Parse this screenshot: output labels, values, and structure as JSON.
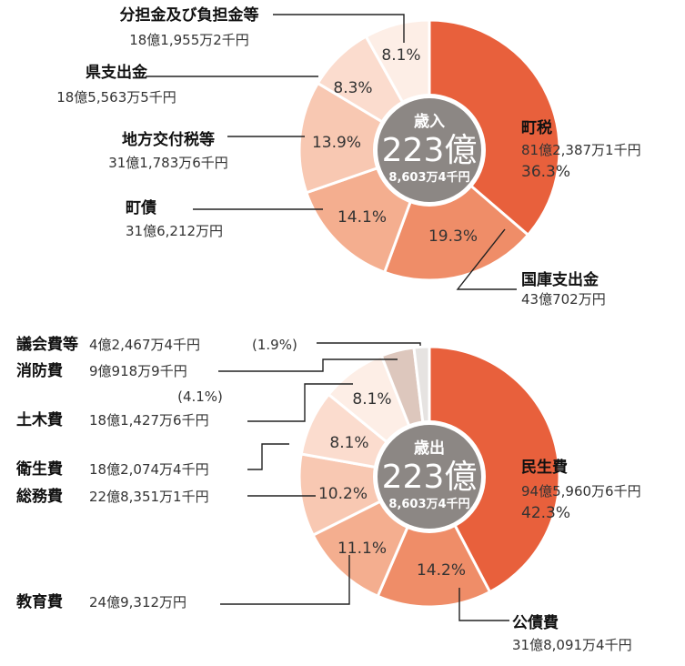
{
  "colors": {
    "accent": "#e8603c",
    "center": "#8c8784"
  },
  "chart_data": [
    {
      "type": "pie",
      "title": "",
      "center": {
        "title": "歳入",
        "total": "223億",
        "sub": "8,603万4千円"
      },
      "slices": [
        {
          "name": "町税",
          "amount": "81億2,387万1千円",
          "percent": 36.3,
          "percent_label": "36.3%",
          "color": "#e8603c"
        },
        {
          "name": "国庫支出金",
          "amount": "43億702万円",
          "percent": 19.3,
          "percent_label": "19.3%",
          "color": "#ef8d68"
        },
        {
          "name": "町債",
          "amount": "31億6,212万円",
          "percent": 14.1,
          "percent_label": "14.1%",
          "color": "#f4ae8f"
        },
        {
          "name": "地方交付税等",
          "amount": "31億1,783万6千円",
          "percent": 13.9,
          "percent_label": "13.9%",
          "color": "#f8c8b2"
        },
        {
          "name": "県支出金",
          "amount": "18億5,563万5千円",
          "percent": 8.3,
          "percent_label": "8.3%",
          "color": "#fbdcce"
        },
        {
          "name": "分担金及び負担金等",
          "amount": "18億1,955万2千円",
          "percent": 8.1,
          "percent_label": "8.1%",
          "color": "#fdeee6"
        }
      ]
    },
    {
      "type": "pie",
      "title": "",
      "center": {
        "title": "歳出",
        "total": "223億",
        "sub": "8,603万4千円"
      },
      "slices": [
        {
          "name": "民生費",
          "amount": "94億5,960万6千円",
          "percent": 42.3,
          "percent_label": "42.3%",
          "color": "#e8603c"
        },
        {
          "name": "公債費",
          "amount": "31億8,091万4千円",
          "percent": 14.2,
          "percent_label": "14.2%",
          "color": "#ef8d68"
        },
        {
          "name": "教育費",
          "amount": "24億9,312万円",
          "percent": 11.1,
          "percent_label": "11.1%",
          "color": "#f4ae8f"
        },
        {
          "name": "総務費",
          "amount": "22億8,351万1千円",
          "percent": 10.2,
          "percent_label": "10.2%",
          "color": "#f8c8b2"
        },
        {
          "name": "衛生費",
          "amount": "18億2,074万4千円",
          "percent": 8.1,
          "percent_label": "8.1%",
          "color": "#fbdcce"
        },
        {
          "name": "土木費",
          "amount": "18億1,427万6千円",
          "percent": 8.1,
          "percent_label": "8.1%",
          "color": "#fdeee6"
        },
        {
          "name": "消防費",
          "amount": "9億918万9千円",
          "percent": 4.1,
          "percent_label": "(4.1%)",
          "color": "#ddc7bd"
        },
        {
          "name": "議会費等",
          "amount": "4億2,467万4千円",
          "percent": 1.9,
          "percent_label": "(1.9%)",
          "color": "#e6e3e1"
        }
      ]
    }
  ]
}
